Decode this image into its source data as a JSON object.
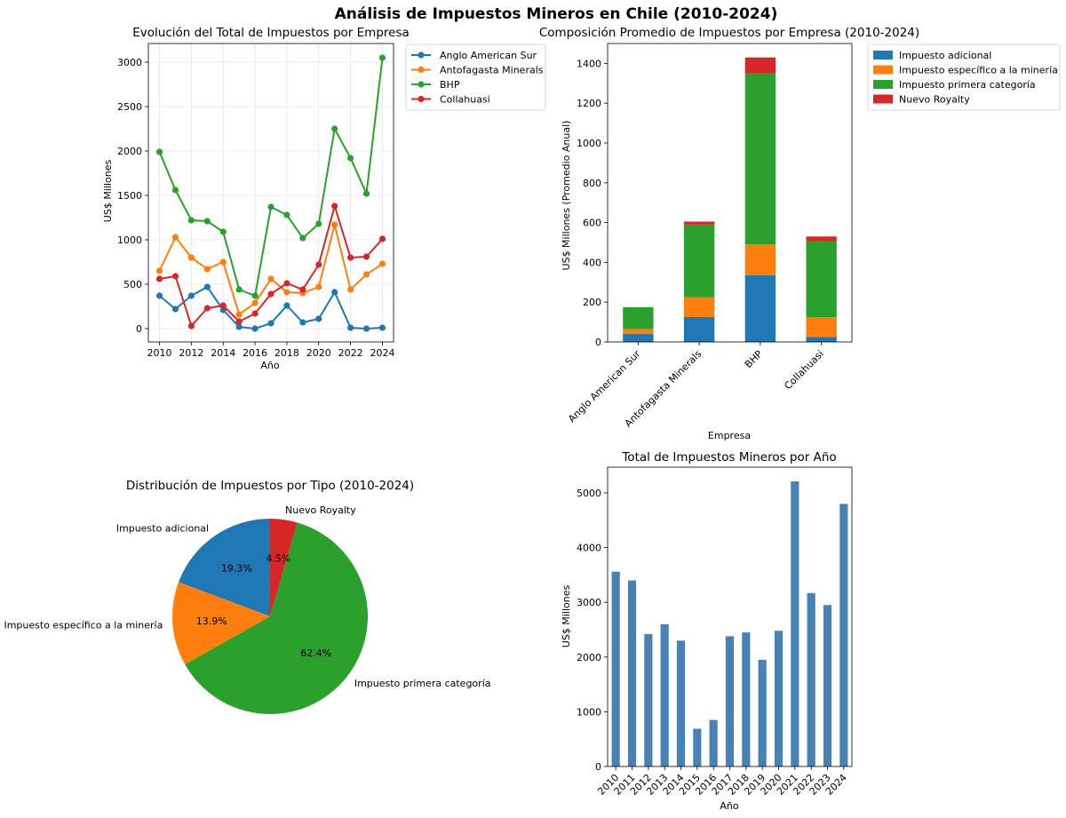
{
  "suptitle": "Análisis de Impuestos Mineros en Chile (2010-2024)",
  "colors": {
    "blue": "#1f77b4",
    "orange": "#ff7f0e",
    "green": "#2ca02c",
    "red": "#d62728",
    "steelblue": "#4682b4",
    "grid": "#e6e6e6"
  },
  "chart_data": [
    {
      "type": "line",
      "title": "Evolución del Total de Impuestos por Empresa",
      "xlabel": "Año",
      "ylabel": "US$ Millones",
      "grid": true,
      "legend_position": "outside-top-right",
      "x": [
        2010,
        2011,
        2012,
        2013,
        2014,
        2015,
        2016,
        2017,
        2018,
        2019,
        2020,
        2021,
        2022,
        2023,
        2024
      ],
      "xticks": [
        2010,
        2012,
        2014,
        2016,
        2018,
        2020,
        2022,
        2024
      ],
      "yticks": [
        0,
        500,
        1000,
        1500,
        2000,
        2500,
        3000
      ],
      "xlim": [
        2009.3,
        2024.7
      ],
      "ylim": [
        -150,
        3210
      ],
      "series": [
        {
          "name": "Anglo American Sur",
          "color": "#1f77b4",
          "values": [
            370,
            220,
            370,
            470,
            210,
            20,
            0,
            60,
            260,
            70,
            110,
            410,
            10,
            0,
            10
          ]
        },
        {
          "name": "Antofagasta Minerals",
          "color": "#ff7f0e",
          "values": [
            650,
            1030,
            800,
            670,
            750,
            160,
            290,
            560,
            410,
            400,
            470,
            1170,
            440,
            610,
            730
          ]
        },
        {
          "name": "BHP",
          "color": "#2ca02c",
          "values": [
            1990,
            1560,
            1220,
            1210,
            1090,
            440,
            370,
            1370,
            1280,
            1020,
            1180,
            2250,
            1920,
            1520,
            3050
          ]
        },
        {
          "name": "Collahuasi",
          "color": "#d62728",
          "values": [
            560,
            590,
            30,
            230,
            260,
            80,
            170,
            390,
            510,
            440,
            720,
            1380,
            800,
            810,
            1010
          ]
        }
      ]
    },
    {
      "type": "bar",
      "stacked": true,
      "title": "Composición Promedio de Impuestos por Empresa (2010-2024)",
      "xlabel": "Empresa",
      "ylabel": "US$ Millones (Promedio Anual)",
      "legend_position": "outside-top-right",
      "categories": [
        "Anglo American Sur",
        "Antofagasta Minerals",
        "BHP",
        "Collahuasi"
      ],
      "yticks": [
        0,
        200,
        400,
        600,
        800,
        1000,
        1200,
        1400
      ],
      "ylim": [
        0,
        1500
      ],
      "series": [
        {
          "name": "Impuesto adicional",
          "color": "#1f77b4",
          "values": [
            40,
            125,
            335,
            25
          ]
        },
        {
          "name": "Impuesto específico a la minería",
          "color": "#ff7f0e",
          "values": [
            25,
            100,
            155,
            100
          ]
        },
        {
          "name": "Impuesto primera categoría",
          "color": "#2ca02c",
          "values": [
            110,
            365,
            860,
            380
          ]
        },
        {
          "name": "Nuevo Royalty",
          "color": "#d62728",
          "values": [
            0,
            15,
            80,
            25
          ]
        }
      ]
    },
    {
      "type": "pie",
      "title": "Distribución de Impuestos por Tipo (2010-2024)",
      "slices": [
        {
          "label": "Impuesto adicional",
          "value": 19.3,
          "pct_label": "19.3%",
          "color": "#1f77b4"
        },
        {
          "label": "Impuesto específico a la minería",
          "value": 13.9,
          "pct_label": "13.9%",
          "color": "#ff7f0e"
        },
        {
          "label": "Impuesto primera categoría",
          "value": 62.4,
          "pct_label": "62.4%",
          "color": "#2ca02c"
        },
        {
          "label": "Nuevo Royalty",
          "value": 4.5,
          "pct_label": "4.5%",
          "color": "#d62728"
        }
      ],
      "start_angle_deg": 90,
      "direction": "counterclockwise"
    },
    {
      "type": "bar",
      "title": "Total de Impuestos Mineros por Año",
      "xlabel": "Año",
      "ylabel": "US$ Millones",
      "color": "#4682b4",
      "categories": [
        "2010",
        "2011",
        "2012",
        "2013",
        "2014",
        "2015",
        "2016",
        "2017",
        "2018",
        "2019",
        "2020",
        "2021",
        "2022",
        "2023",
        "2024"
      ],
      "values": [
        3560,
        3400,
        2420,
        2600,
        2300,
        690,
        850,
        2380,
        2450,
        1950,
        2480,
        5210,
        3170,
        2950,
        4800
      ],
      "yticks": [
        0,
        1000,
        2000,
        3000,
        4000,
        5000
      ],
      "ylim": [
        0,
        5470
      ]
    }
  ]
}
